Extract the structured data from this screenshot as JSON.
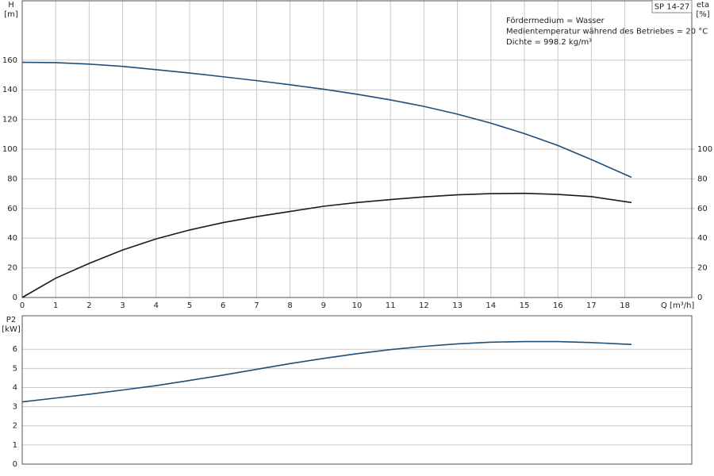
{
  "chart_data": [
    {
      "type": "line",
      "title": "SP 14-27",
      "ylabel": [
        "H",
        "[m]"
      ],
      "y2label": [
        "eta",
        "[%]"
      ],
      "xlabel": "Q [m³/h]",
      "annotations": [
        "Fördermedium = Wasser",
        "Medientemperatur während des Betriebes = 20 °C",
        "Dichte = 998.2 kg/m³"
      ],
      "x": [
        0,
        1,
        2,
        3,
        4,
        5,
        6,
        7,
        8,
        9,
        10,
        11,
        12,
        13,
        14,
        15,
        16,
        17,
        18.2
      ],
      "series": [
        {
          "color": "#1f4e79",
          "axis": "y",
          "values": [
            158.5,
            158.3,
            157.3,
            155.8,
            153.6,
            151.3,
            148.8,
            146.2,
            143.4,
            140.4,
            137.0,
            133.2,
            128.8,
            123.6,
            117.5,
            110.5,
            102.5,
            93,
            81
          ]
        },
        {
          "color": "#1a1a1a",
          "axis": "y2",
          "values": [
            0,
            13,
            23,
            32,
            39.5,
            45.5,
            50.5,
            54.5,
            58,
            61.5,
            64,
            66,
            67.8,
            69.2,
            70,
            70.2,
            69.5,
            68,
            64
          ]
        }
      ],
      "xlim": [
        0,
        20
      ],
      "xticks": [
        0,
        1,
        2,
        3,
        4,
        5,
        6,
        7,
        8,
        9,
        10,
        11,
        12,
        13,
        14,
        15,
        16,
        17,
        18
      ],
      "ylim": [
        0,
        200
      ],
      "yticks": [
        0,
        20,
        40,
        60,
        80,
        100,
        120,
        140,
        160
      ],
      "y2lim": [
        0,
        200
      ],
      "y2ticks": [
        0,
        20,
        40,
        60,
        80,
        100
      ],
      "grid": true
    },
    {
      "type": "line",
      "ylabel": [
        "P2",
        "[kW]"
      ],
      "x": [
        0,
        1,
        2,
        3,
        4,
        5,
        6,
        7,
        8,
        9,
        10,
        11,
        12,
        13,
        14,
        15,
        16,
        17,
        18.2
      ],
      "series": [
        {
          "color": "#1f4e79",
          "axis": "y",
          "values": [
            3.25,
            3.45,
            3.65,
            3.87,
            4.1,
            4.37,
            4.65,
            4.95,
            5.25,
            5.52,
            5.77,
            5.98,
            6.15,
            6.28,
            6.37,
            6.4,
            6.4,
            6.35,
            6.25
          ]
        }
      ],
      "xlim": [
        0,
        20
      ],
      "ylim": [
        0,
        7.75
      ],
      "yticks": [
        0,
        1,
        2,
        3,
        4,
        5,
        6
      ],
      "grid": true
    }
  ]
}
